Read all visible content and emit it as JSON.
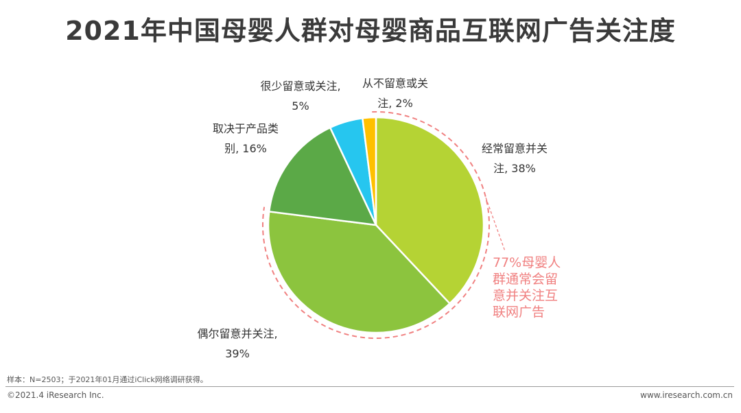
{
  "title": "2021年中国母婴人群对母婴商品互联网广告关注度",
  "chart_data": {
    "type": "pie",
    "title": "2021年中国母婴人群对母婴商品互联网广告关注度",
    "slices": [
      {
        "label_lines": [
          "经常留意并关",
          "注, 38%"
        ],
        "value": 38,
        "color": "#b5d334"
      },
      {
        "label_lines": [
          "偶尔留意并关注,",
          "39%"
        ],
        "value": 39,
        "color": "#8cc43e"
      },
      {
        "label_lines": [
          "取决于产品类",
          "别, 16%"
        ],
        "value": 16,
        "color": "#5ba947"
      },
      {
        "label_lines": [
          "很少留意或关注,",
          "5%"
        ],
        "value": 5,
        "color": "#26c6ef"
      },
      {
        "label_lines": [
          "从不留意或关",
          "注, 2%"
        ],
        "value": 2,
        "color": "#ffc000"
      }
    ],
    "start_angle_deg": 0,
    "direction": "clockwise",
    "annotation": {
      "lines": [
        "77%母婴人",
        "群通常会留",
        "意并关注互",
        "联网广告"
      ],
      "color": "#f08080",
      "covers": "经常留意并关注 + 偶尔留意并关注"
    }
  },
  "footer": {
    "note": "样本：N=2503；于2021年01月通过iClick网络调研获得。",
    "copyright": "©2021.4 iResearch Inc.",
    "website": "www.iresearch.com.cn"
  }
}
